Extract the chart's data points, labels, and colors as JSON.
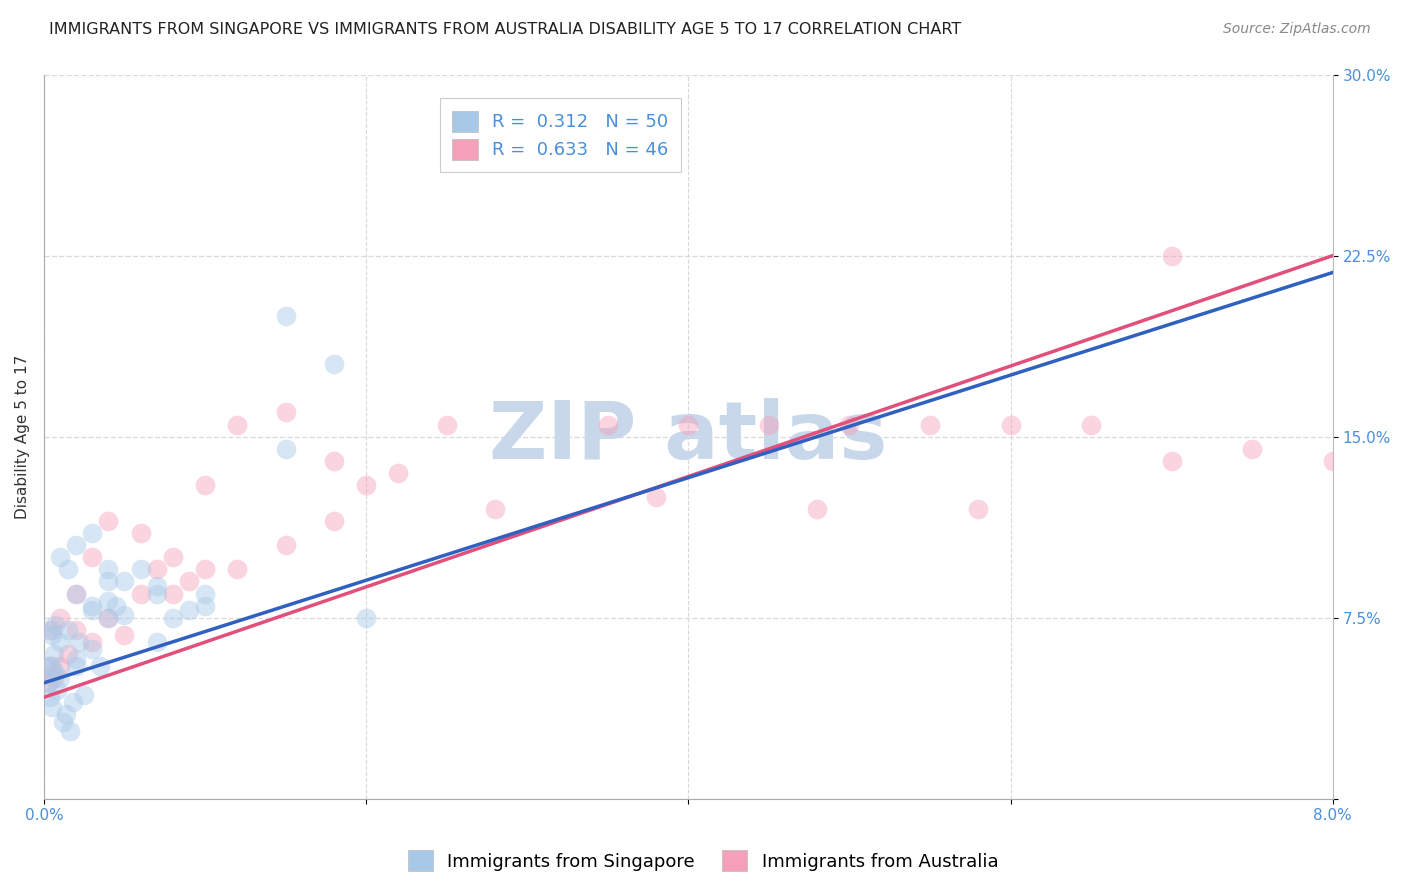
{
  "title": "IMMIGRANTS FROM SINGAPORE VS IMMIGRANTS FROM AUSTRALIA DISABILITY AGE 5 TO 17 CORRELATION CHART",
  "source": "Source: ZipAtlas.com",
  "ylabel": "Disability Age 5 to 17",
  "legend_label1": "Immigrants from Singapore",
  "legend_label2": "Immigrants from Australia",
  "R1": 0.312,
  "N1": 50,
  "R2": 0.633,
  "N2": 46,
  "xlim": [
    0.0,
    0.08
  ],
  "ylim": [
    0.0,
    0.3
  ],
  "x_ticks": [
    0.0,
    0.02,
    0.04,
    0.06,
    0.08
  ],
  "x_tick_labels": [
    "0.0%",
    "",
    "",
    "",
    "8.0%"
  ],
  "y_ticks": [
    0.0,
    0.075,
    0.15,
    0.225,
    0.3
  ],
  "y_tick_labels": [
    "",
    "7.5%",
    "15.0%",
    "22.5%",
    "30.0%"
  ],
  "color_singapore": "#a8c8e8",
  "color_australia": "#f4a0b8",
  "line_color_singapore": "#3060c0",
  "line_color_australia": "#e0507a",
  "bg_color": "#ffffff",
  "singapore_x": [
    0.0002,
    0.0003,
    0.0004,
    0.0005,
    0.0006,
    0.0007,
    0.0008,
    0.001,
    0.0012,
    0.0014,
    0.0016,
    0.0018,
    0.002,
    0.0022,
    0.0025,
    0.003,
    0.0035,
    0.004,
    0.0045,
    0.005,
    0.006,
    0.007,
    0.008,
    0.009,
    0.01,
    0.0003,
    0.0005,
    0.0007,
    0.001,
    0.0015,
    0.002,
    0.003,
    0.004,
    0.0005,
    0.001,
    0.0015,
    0.002,
    0.003,
    0.004,
    0.005,
    0.007,
    0.01,
    0.015,
    0.02,
    0.015,
    0.018,
    0.007,
    0.004,
    0.003,
    0.002
  ],
  "singapore_y": [
    0.055,
    0.048,
    0.042,
    0.038,
    0.06,
    0.052,
    0.045,
    0.05,
    0.032,
    0.035,
    0.028,
    0.04,
    0.058,
    0.065,
    0.043,
    0.062,
    0.055,
    0.075,
    0.08,
    0.09,
    0.095,
    0.085,
    0.075,
    0.078,
    0.08,
    0.07,
    0.068,
    0.072,
    0.1,
    0.095,
    0.105,
    0.11,
    0.095,
    0.055,
    0.065,
    0.07,
    0.085,
    0.078,
    0.082,
    0.076,
    0.088,
    0.085,
    0.145,
    0.075,
    0.2,
    0.18,
    0.065,
    0.09,
    0.08,
    0.055
  ],
  "australia_x": [
    0.0002,
    0.0004,
    0.0006,
    0.001,
    0.0015,
    0.002,
    0.003,
    0.004,
    0.005,
    0.006,
    0.007,
    0.008,
    0.009,
    0.01,
    0.012,
    0.015,
    0.018,
    0.02,
    0.022,
    0.025,
    0.015,
    0.012,
    0.01,
    0.008,
    0.006,
    0.004,
    0.003,
    0.002,
    0.001,
    0.0005,
    0.035,
    0.04,
    0.045,
    0.05,
    0.055,
    0.06,
    0.065,
    0.07,
    0.075,
    0.08,
    0.07,
    0.058,
    0.048,
    0.038,
    0.028,
    0.018
  ],
  "australia_y": [
    0.048,
    0.055,
    0.05,
    0.055,
    0.06,
    0.07,
    0.065,
    0.075,
    0.068,
    0.085,
    0.095,
    0.085,
    0.09,
    0.095,
    0.095,
    0.105,
    0.115,
    0.13,
    0.135,
    0.155,
    0.16,
    0.155,
    0.13,
    0.1,
    0.11,
    0.115,
    0.1,
    0.085,
    0.075,
    0.07,
    0.155,
    0.155,
    0.155,
    0.155,
    0.155,
    0.155,
    0.155,
    0.14,
    0.145,
    0.14,
    0.225,
    0.12,
    0.12,
    0.125,
    0.12,
    0.14
  ],
  "line_sg_x0": 0.0,
  "line_sg_y0": 0.048,
  "line_sg_x1": 0.08,
  "line_sg_y1": 0.218,
  "line_au_x0": 0.0,
  "line_au_y0": 0.042,
  "line_au_x1": 0.08,
  "line_au_y1": 0.225,
  "dot_size": 200,
  "dot_alpha": 0.45,
  "watermark_color": "#c8d8ea",
  "watermark_fontsize": 58,
  "grid_color": "#d8d8d8",
  "title_fontsize": 11.5,
  "axis_label_fontsize": 11,
  "tick_fontsize": 11,
  "legend_fontsize": 13,
  "source_fontsize": 10
}
